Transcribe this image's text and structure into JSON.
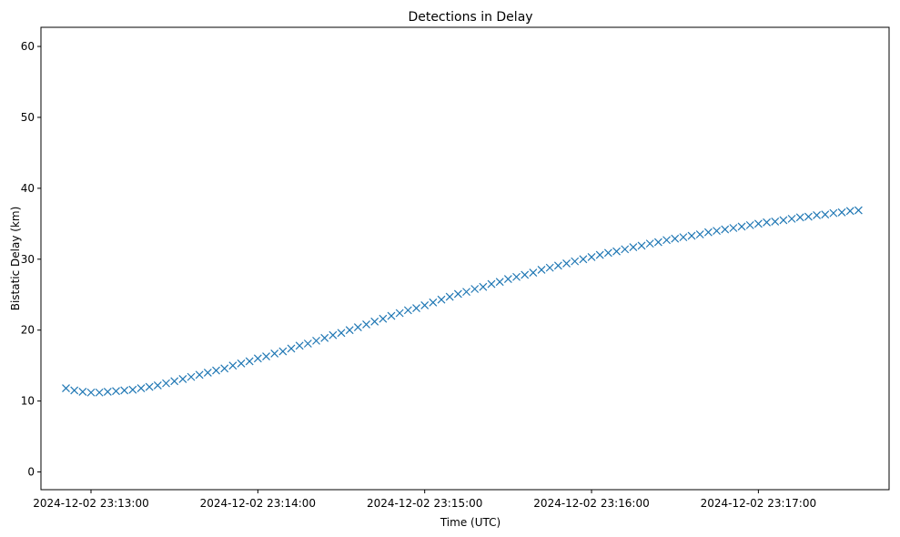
{
  "chart_data": {
    "type": "scatter",
    "title": "Detections in Delay",
    "xlabel": "Time (UTC)",
    "ylabel": "Bistatic Delay (km)",
    "x_axis_kind": "datetime",
    "xlim": [
      "2024-12-02 23:12:42",
      "2024-12-02 23:17:47"
    ],
    "ylim": [
      -2.5,
      62.7
    ],
    "x_ticks": [
      "2024-12-02 23:13:00",
      "2024-12-02 23:14:00",
      "2024-12-02 23:15:00",
      "2024-12-02 23:16:00",
      "2024-12-02 23:17:00"
    ],
    "y_ticks": [
      0,
      10,
      20,
      30,
      40,
      50,
      60
    ],
    "grid": false,
    "marker": "x",
    "marker_color": "#1f77b4",
    "series": [
      {
        "points_desc": "track_a",
        "x": [
          "2024-12-02 23:12:51",
          "2024-12-02 23:12:54",
          "2024-12-02 23:12:57",
          "2024-12-02 23:13:00",
          "2024-12-02 23:13:03",
          "2024-12-02 23:13:06",
          "2024-12-02 23:13:09",
          "2024-12-02 23:13:12",
          "2024-12-02 23:13:15",
          "2024-12-02 23:13:18",
          "2024-12-02 23:13:21",
          "2024-12-02 23:13:24",
          "2024-12-02 23:13:27",
          "2024-12-02 23:13:30",
          "2024-12-02 23:13:33",
          "2024-12-02 23:13:36",
          "2024-12-02 23:13:39",
          "2024-12-02 23:13:42",
          "2024-12-02 23:13:45",
          "2024-12-02 23:13:48",
          "2024-12-02 23:13:51",
          "2024-12-02 23:13:54",
          "2024-12-02 23:13:57",
          "2024-12-02 23:14:00",
          "2024-12-02 23:14:03",
          "2024-12-02 23:14:06",
          "2024-12-02 23:14:09",
          "2024-12-02 23:14:12",
          "2024-12-02 23:14:15",
          "2024-12-02 23:14:18",
          "2024-12-02 23:14:21",
          "2024-12-02 23:14:24",
          "2024-12-02 23:14:27",
          "2024-12-02 23:14:30",
          "2024-12-02 23:14:33",
          "2024-12-02 23:14:36",
          "2024-12-02 23:14:39",
          "2024-12-02 23:14:42",
          "2024-12-02 23:14:45",
          "2024-12-02 23:14:48",
          "2024-12-02 23:14:51",
          "2024-12-02 23:14:54",
          "2024-12-02 23:14:57",
          "2024-12-02 23:15:00",
          "2024-12-02 23:15:03",
          "2024-12-02 23:15:06",
          "2024-12-02 23:15:09",
          "2024-12-02 23:15:12",
          "2024-12-02 23:15:15",
          "2024-12-02 23:15:18",
          "2024-12-02 23:15:21",
          "2024-12-02 23:15:24",
          "2024-12-02 23:15:27",
          "2024-12-02 23:15:30",
          "2024-12-02 23:15:33",
          "2024-12-02 23:15:36",
          "2024-12-02 23:15:39",
          "2024-12-02 23:15:42",
          "2024-12-02 23:15:45",
          "2024-12-02 23:15:48",
          "2024-12-02 23:15:51",
          "2024-12-02 23:15:54",
          "2024-12-02 23:15:57",
          "2024-12-02 23:16:00",
          "2024-12-02 23:16:03",
          "2024-12-02 23:16:06",
          "2024-12-02 23:16:09",
          "2024-12-02 23:16:12",
          "2024-12-02 23:16:15",
          "2024-12-02 23:16:18",
          "2024-12-02 23:16:21",
          "2024-12-02 23:16:24",
          "2024-12-02 23:16:27",
          "2024-12-02 23:16:30",
          "2024-12-02 23:16:33",
          "2024-12-02 23:16:36",
          "2024-12-02 23:16:39",
          "2024-12-02 23:16:42",
          "2024-12-02 23:16:45",
          "2024-12-02 23:16:48",
          "2024-12-02 23:16:51",
          "2024-12-02 23:16:54",
          "2024-12-02 23:16:57",
          "2024-12-02 23:17:00",
          "2024-12-02 23:17:03",
          "2024-12-02 23:17:06",
          "2024-12-02 23:17:09",
          "2024-12-02 23:17:12",
          "2024-12-02 23:17:15",
          "2024-12-02 23:17:18",
          "2024-12-02 23:17:21",
          "2024-12-02 23:17:24",
          "2024-12-02 23:17:27",
          "2024-12-02 23:17:30",
          "2024-12-02 23:17:33",
          "2024-12-02 23:17:36"
        ],
        "y": [
          11.8,
          11.5,
          11.3,
          11.2,
          11.2,
          11.3,
          11.4,
          11.5,
          11.6,
          11.8,
          12.0,
          12.2,
          12.5,
          12.8,
          13.1,
          13.4,
          13.7,
          14.0,
          14.3,
          14.6,
          15.0,
          15.3,
          15.6,
          16.0,
          16.3,
          16.7,
          17.0,
          17.4,
          17.8,
          18.1,
          18.5,
          18.9,
          19.3,
          19.6,
          20.0,
          20.4,
          20.8,
          21.2,
          21.6,
          22.0,
          22.4,
          22.8,
          23.1,
          23.5,
          23.9,
          24.3,
          24.7,
          25.1,
          25.4,
          25.8,
          26.1,
          26.5,
          26.8,
          27.2,
          27.5,
          27.8,
          28.1,
          28.5,
          28.8,
          29.1,
          29.4,
          29.7,
          30.0,
          30.3,
          30.6,
          30.9,
          31.1,
          31.4,
          31.7,
          31.9,
          32.2,
          32.4,
          32.7,
          32.9,
          33.1,
          33.3,
          33.5,
          33.8,
          34.0,
          34.2,
          34.4,
          34.6,
          34.8,
          35.0,
          35.2,
          35.3,
          35.5,
          35.7,
          35.9,
          36.0,
          36.2,
          36.3,
          36.5,
          36.6,
          36.8,
          36.9
        ]
      }
    ]
  }
}
